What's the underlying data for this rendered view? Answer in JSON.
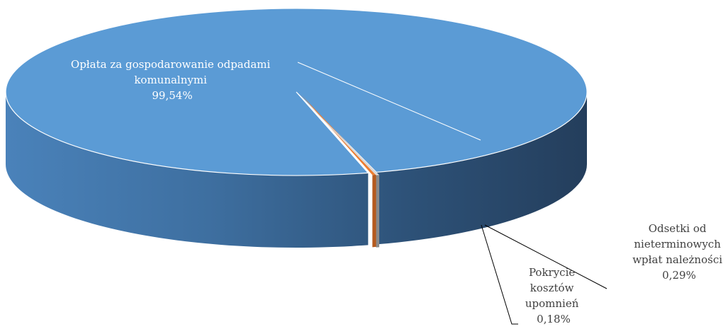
{
  "chart_data": {
    "type": "pie",
    "title": "",
    "categories": [
      "Opłata za gospodarowanie odpadami komunalnymi",
      "Odsetki od nieterminowych wpłat należności",
      "Pokrycie kosztów upomnień"
    ],
    "values": [
      99.54,
      0.29,
      0.18
    ],
    "value_labels": [
      "99,54%",
      "0,29%",
      "0,18%"
    ],
    "label_lines": {
      "main": [
        "Opłata za gospodarowanie odpadami",
        "komunalnymi",
        "99,54%"
      ],
      "odsetki": [
        "Odsetki od",
        "nieterminowych",
        "wpłat należności",
        "0,29%"
      ],
      "pokrycie": [
        "Pokrycie",
        "kosztów",
        "upomnień",
        "0,18%"
      ]
    },
    "colors": [
      "#5b9bd5",
      "#ed7d31",
      "#a5a5a5"
    ],
    "style": "3d-exploded",
    "legend": "none"
  }
}
